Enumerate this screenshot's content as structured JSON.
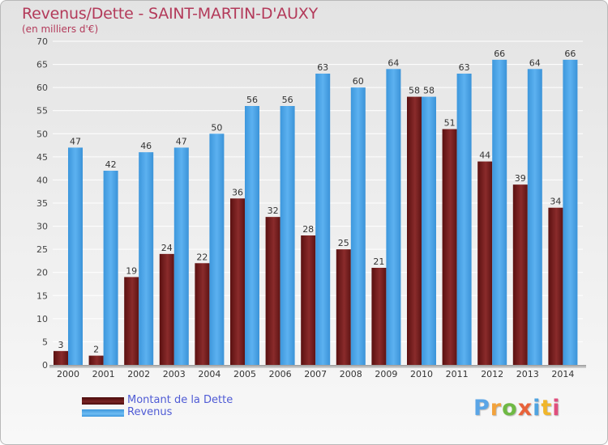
{
  "title": "Revenus/Dette - SAINT-MARTIN-D'AUXY",
  "subtitle": "(en milliers d'€)",
  "logo": {
    "text": "Proxiti",
    "colors": [
      "#5aa5e6",
      "#f2a23c",
      "#6fb944",
      "#e8623a",
      "#4fa3e0",
      "#f0b62b",
      "#e04e7d"
    ]
  },
  "colors": {
    "dette": "#7a1f1f",
    "revenus": "#4ea7ea",
    "title": "#b33a5a",
    "legend_text": "#4f5bd5"
  },
  "legend": [
    {
      "label": "Montant de la Dette",
      "color": "#6e1a1a"
    },
    {
      "label": "Revenus",
      "color": "#4ea7ea"
    }
  ],
  "chart_data": {
    "type": "bar",
    "title": "Revenus/Dette - SAINT-MARTIN-D'AUXY",
    "subtitle": "(en milliers d'€)",
    "categories": [
      "2000",
      "2001",
      "2002",
      "2003",
      "2004",
      "2005",
      "2006",
      "2007",
      "2008",
      "2009",
      "2010",
      "2011",
      "2012",
      "2013",
      "2014"
    ],
    "series": [
      {
        "name": "Montant de la Dette",
        "values": [
          3,
          2,
          19,
          24,
          22,
          36,
          32,
          28,
          25,
          21,
          58,
          51,
          44,
          39,
          34
        ]
      },
      {
        "name": "Revenus",
        "values": [
          47,
          42,
          46,
          47,
          50,
          56,
          56,
          63,
          60,
          64,
          58,
          63,
          66,
          64,
          66
        ]
      }
    ],
    "ylim": [
      0,
      70
    ],
    "yticks": [
      0,
      5,
      10,
      15,
      20,
      25,
      30,
      35,
      40,
      45,
      50,
      55,
      60,
      65,
      70
    ],
    "grid": true,
    "legend_position": "bottom-left"
  }
}
